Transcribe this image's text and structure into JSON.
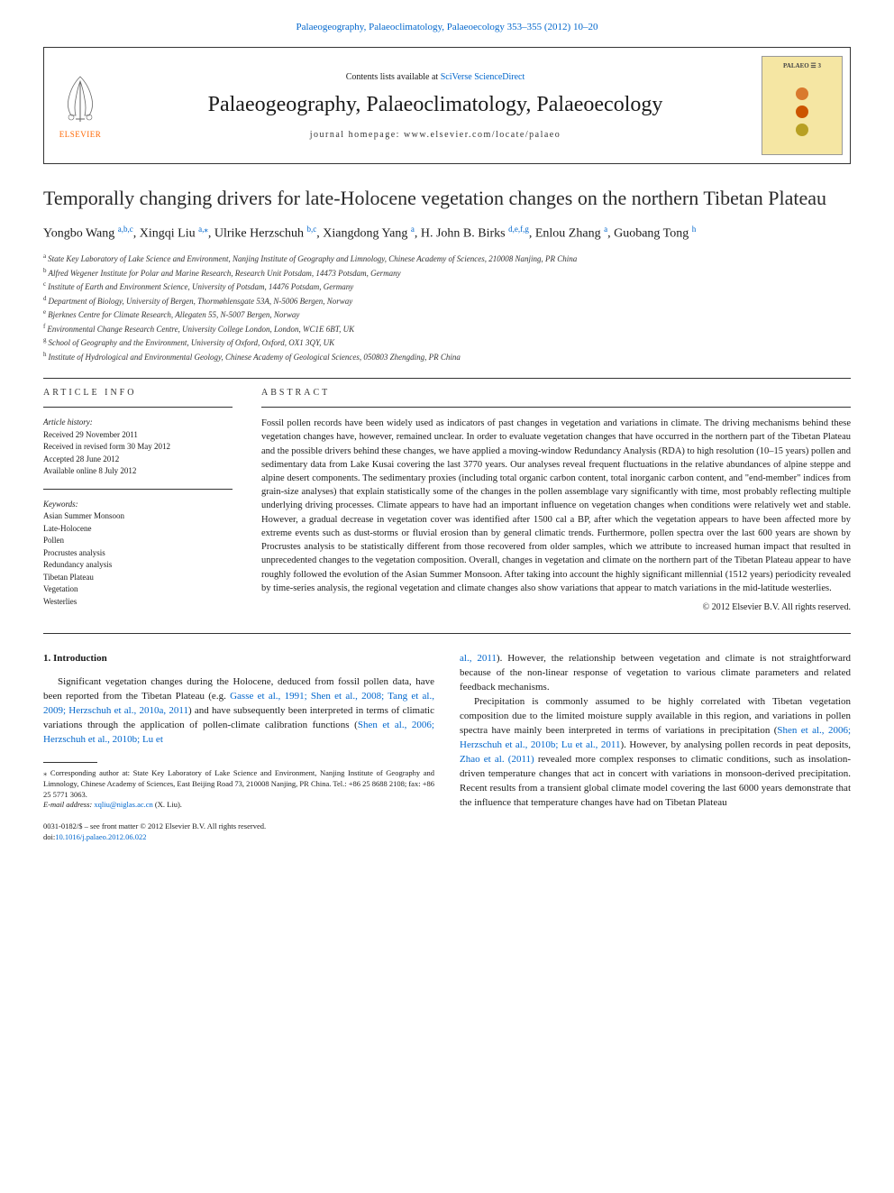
{
  "top_link": "Palaeogeography, Palaeoclimatology, Palaeoecology 353–355 (2012) 10–20",
  "header": {
    "contents_prefix": "Contents lists available at ",
    "contents_link": "SciVerse ScienceDirect",
    "journal_title": "Palaeogeography, Palaeoclimatology, Palaeoecology",
    "homepage": "journal homepage: www.elsevier.com/locate/palaeo",
    "elsevier_label": "ELSEVIER",
    "cover_label": "PALAEO ☰ 3",
    "cover_colors": [
      "#d97a2e",
      "#cc5500",
      "#b8a023"
    ]
  },
  "article": {
    "title": "Temporally changing drivers for late-Holocene vegetation changes on the northern Tibetan Plateau",
    "authors_html": "Yongbo Wang <span class='sup'>a,b,c</span>, Xingqi Liu <span class='sup'>a,</span><span class='sup star'>⁎</span>, Ulrike Herzschuh <span class='sup'>b,c</span>, Xiangdong Yang <span class='sup'>a</span>, H. John B. Birks <span class='sup'>d,e,f,g</span>, Enlou Zhang <span class='sup'>a</span>, Guobang Tong <span class='sup'>h</span>",
    "affiliations": [
      {
        "k": "a",
        "t": "State Key Laboratory of Lake Science and Environment, Nanjing Institute of Geography and Limnology, Chinese Academy of Sciences, 210008 Nanjing, PR China"
      },
      {
        "k": "b",
        "t": "Alfred Wegener Institute for Polar and Marine Research, Research Unit Potsdam, 14473 Potsdam, Germany"
      },
      {
        "k": "c",
        "t": "Institute of Earth and Environment Science, University of Potsdam, 14476 Potsdam, Germany"
      },
      {
        "k": "d",
        "t": "Department of Biology, University of Bergen, Thormøhlensgate 53A, N-5006 Bergen, Norway"
      },
      {
        "k": "e",
        "t": "Bjerknes Centre for Climate Research, Allegaten 55, N-5007 Bergen, Norway"
      },
      {
        "k": "f",
        "t": "Environmental Change Research Centre, University College London, London, WC1E 6BT, UK"
      },
      {
        "k": "g",
        "t": "School of Geography and the Environment, University of Oxford, Oxford, OX1 3QY, UK"
      },
      {
        "k": "h",
        "t": "Institute of Hydrological and Environmental Geology, Chinese Academy of Geological Sciences, 050803 Zhengding, PR China"
      }
    ]
  },
  "info": {
    "heading": "article info",
    "history_label": "Article history:",
    "history": [
      "Received 29 November 2011",
      "Received in revised form 30 May 2012",
      "Accepted 28 June 2012",
      "Available online 8 July 2012"
    ],
    "keywords_label": "Keywords:",
    "keywords": [
      "Asian Summer Monsoon",
      "Late-Holocene",
      "Pollen",
      "Procrustes analysis",
      "Redundancy analysis",
      "Tibetan Plateau",
      "Vegetation",
      "Westerlies"
    ]
  },
  "abstract": {
    "heading": "abstract",
    "text": "Fossil pollen records have been widely used as indicators of past changes in vegetation and variations in climate. The driving mechanisms behind these vegetation changes have, however, remained unclear. In order to evaluate vegetation changes that have occurred in the northern part of the Tibetan Plateau and the possible drivers behind these changes, we have applied a moving-window Redundancy Analysis (RDA) to high resolution (10–15 years) pollen and sedimentary data from Lake Kusai covering the last 3770 years. Our analyses reveal frequent fluctuations in the relative abundances of alpine steppe and alpine desert components. The sedimentary proxies (including total organic carbon content, total inorganic carbon content, and \"end-member\" indices from grain-size analyses) that explain statistically some of the changes in the pollen assemblage vary significantly with time, most probably reflecting multiple underlying driving processes. Climate appears to have had an important influence on vegetation changes when conditions were relatively wet and stable. However, a gradual decrease in vegetation cover was identified after 1500 cal a BP, after which the vegetation appears to have been affected more by extreme events such as dust-storms or fluvial erosion than by general climatic trends. Furthermore, pollen spectra over the last 600 years are shown by Procrustes analysis to be statistically different from those recovered from older samples, which we attribute to increased human impact that resulted in unprecedented changes to the vegetation composition. Overall, changes in vegetation and climate on the northern part of the Tibetan Plateau appear to have roughly followed the evolution of the Asian Summer Monsoon. After taking into account the highly significant millennial (1512 years) periodicity revealed by time-series analysis, the regional vegetation and climate changes also show variations that appear to match variations in the mid-latitude westerlies.",
    "copyright": "© 2012 Elsevier B.V. All rights reserved."
  },
  "body": {
    "intro_heading": "1. Introduction",
    "col1_p1_a": "Significant vegetation changes during the Holocene, deduced from fossil pollen data, have been reported from the Tibetan Plateau (e.g. ",
    "col1_cite1": "Gasse et al., 1991; Shen et al., 2008; Tang et al., 2009; Herzschuh et al., 2010a, 2011",
    "col1_p1_b": ") and have subsequently been interpreted in terms of climatic variations through the application of pollen-climate calibration functions (",
    "col1_cite2": "Shen et al., 2006; Herzschuh et al., 2010b; Lu et",
    "col2_cite_cont": "al., 2011",
    "col2_p1_a": "). However, the relationship between vegetation and climate is not straightforward because of the non-linear response of vegetation to various climate parameters and related feedback mechanisms.",
    "col2_p2_a": "Precipitation is commonly assumed to be highly correlated with Tibetan vegetation composition due to the limited moisture supply available in this region, and variations in pollen spectra have mainly been interpreted in terms of variations in precipitation (",
    "col2_cite3": "Shen et al., 2006; Herzschuh et al., 2010b; Lu et al., 2011",
    "col2_p2_b": "). However, by analysing pollen records in peat deposits, ",
    "col2_cite4": "Zhao et al. (2011)",
    "col2_p2_c": " revealed more complex responses to climatic conditions, such as insolation-driven temperature changes that act in concert with variations in monsoon-derived precipitation. Recent results from a transient global climate model covering the last 6000 years demonstrate that the influence that temperature changes have had on Tibetan Plateau"
  },
  "footnote": {
    "corr": "⁎ Corresponding author at: State Key Laboratory of Lake Science and Environment, Nanjing Institute of Geography and Limnology, Chinese Academy of Sciences, East Beijing Road 73, 210008 Nanjing, PR China. Tel.: +86 25 8688 2108; fax: +86 25 5771 3063.",
    "email_label": "E-mail address: ",
    "email": "xqliu@niglas.ac.cn",
    "email_suffix": " (X. Liu)."
  },
  "footer": {
    "line1": "0031-0182/$ – see front matter © 2012 Elsevier B.V. All rights reserved.",
    "doi_prefix": "doi:",
    "doi": "10.1016/j.palaeo.2012.06.022"
  },
  "colors": {
    "link": "#0066cc",
    "elsevier_orange": "#ff6600",
    "cover_bg": "#f5e6a3"
  }
}
